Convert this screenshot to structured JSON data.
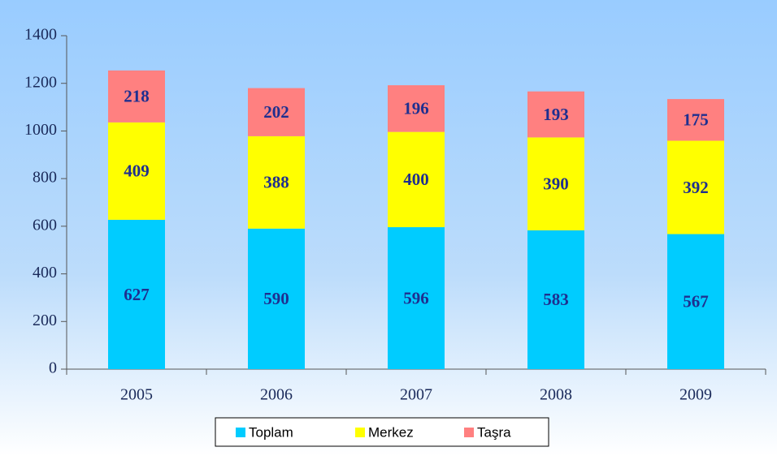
{
  "chart_data": {
    "type": "stacked_bar",
    "categories": [
      "2005",
      "2006",
      "2007",
      "2008",
      "2009"
    ],
    "series": [
      {
        "name": "Toplam",
        "color": "#00ccff",
        "values": [
          627,
          590,
          596,
          583,
          567
        ]
      },
      {
        "name": "Merkez",
        "color": "#ffff00",
        "values": [
          409,
          388,
          400,
          390,
          392
        ]
      },
      {
        "name": "Taşra",
        "color": "#ff8080",
        "values": [
          218,
          202,
          196,
          193,
          175
        ]
      }
    ],
    "ylim": [
      0,
      1400
    ],
    "yticks": [
      0,
      200,
      400,
      600,
      800,
      1000,
      1200,
      1400
    ],
    "legend": "bottom"
  }
}
